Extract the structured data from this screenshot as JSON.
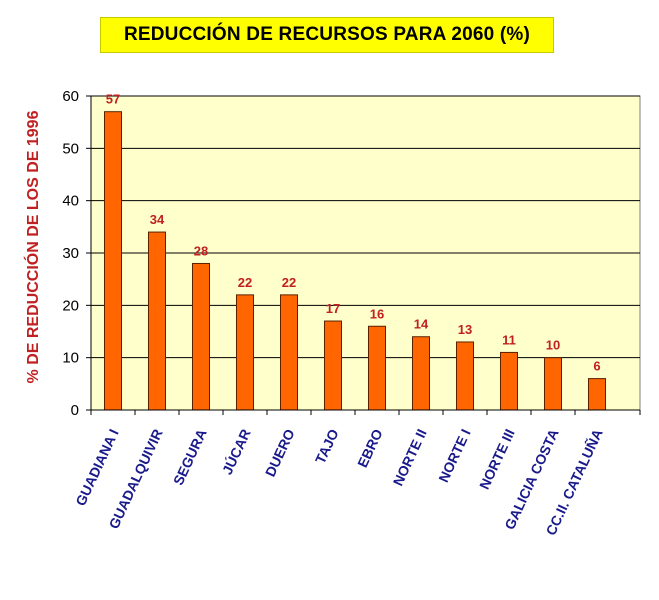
{
  "chart_data": {
    "type": "bar",
    "title": "REDUCCIÓN DE RECURSOS PARA 2060 (%)",
    "ylabel": "% DE REDUCCIÓN DE LOS  DE 1996",
    "xlabel": "",
    "ylim": [
      0,
      60
    ],
    "yticks": [
      0,
      10,
      20,
      30,
      40,
      50,
      60
    ],
    "grid": true,
    "categories": [
      "GUADIANA I",
      "GUADALQUIVIR",
      "SEGURA",
      "JÚCAR",
      "DUERO",
      "TAJO",
      "EBRO",
      "NORTE II",
      "NORTE I",
      "NORTE III",
      "GALICIA COSTA",
      "CC.II. CATALUÑA"
    ],
    "values": [
      57,
      34,
      28,
      22,
      22,
      17,
      16,
      14,
      13,
      11,
      10,
      6
    ],
    "colors": {
      "bar": "#ff6600",
      "bar_edge": "#5a2000",
      "plot_bg": "#ffffcc",
      "label": "#c02020",
      "category": "#1a1a8c",
      "title_bg": "#ffff00"
    }
  }
}
